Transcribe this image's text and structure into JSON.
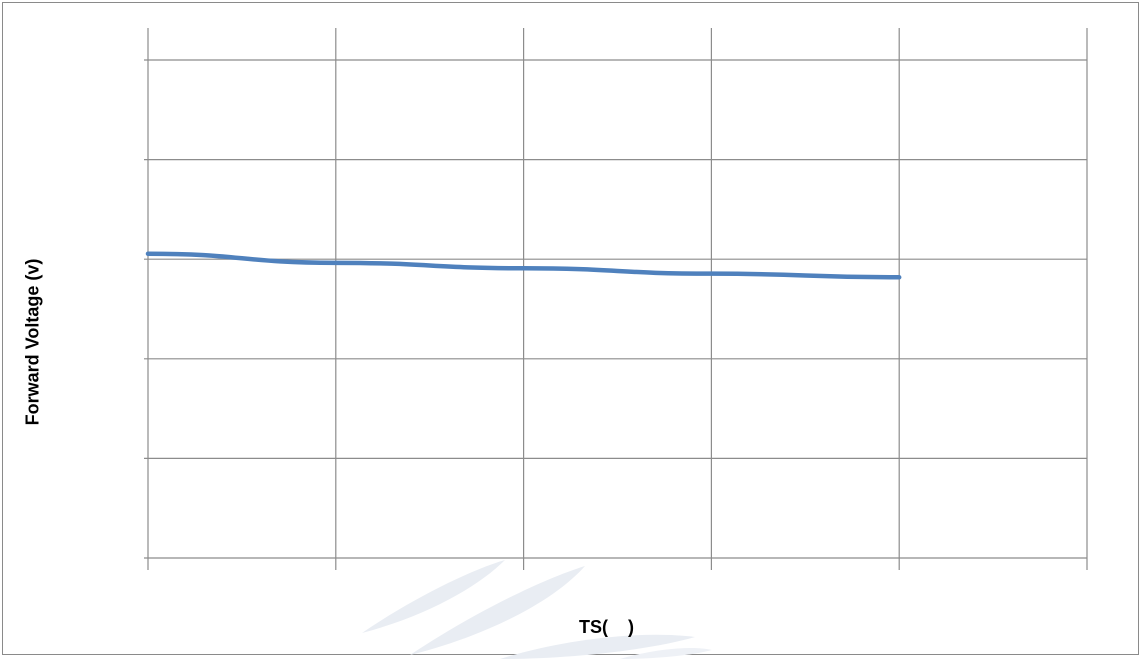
{
  "chart_data": {
    "type": "line",
    "title": "",
    "xlabel": "TS(    )",
    "ylabel": "Forward Voltage (v)",
    "x_categories": 5,
    "y_gridlines": 6,
    "grid": true,
    "legend": "none",
    "series": [
      {
        "color": "#4f81bd",
        "values": [
          3.36,
          3.26,
          3.2,
          3.14,
          3.1
        ]
      }
    ],
    "ylim": [
      0,
      5.5
    ]
  },
  "colors": {
    "series": "#4f81bd",
    "grid": "#8c8c8c",
    "watermark": "#e7ebf2"
  }
}
